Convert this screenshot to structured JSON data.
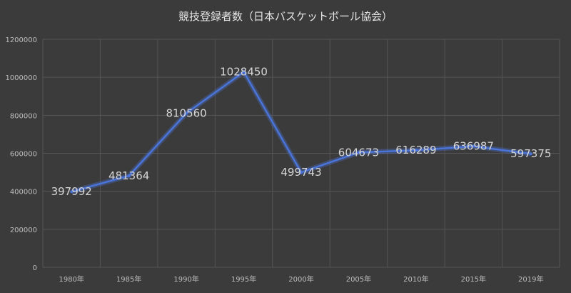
{
  "chart_data": {
    "type": "line",
    "title": "競技登録者数（日本バスケットボール協会）",
    "xlabel": "",
    "ylabel": "",
    "categories": [
      "1980年",
      "1985年",
      "1990年",
      "1995年",
      "2000年",
      "2005年",
      "2010年",
      "2015年",
      "2019年"
    ],
    "series": [
      {
        "values": [
          397992,
          481364,
          810560,
          1028450,
          499743,
          604673,
          616289,
          636987,
          597375
        ],
        "labels": [
          "397992",
          "481364",
          "810560",
          "1028450",
          "499743",
          "604673",
          "616289",
          "636987",
          "597375"
        ],
        "color": "#4a74d8"
      }
    ],
    "ylim": [
      0,
      1200000
    ],
    "yticks": [
      0,
      200000,
      400000,
      600000,
      800000,
      1000000,
      1200000
    ],
    "ytick_labels": [
      "0",
      "200000",
      "400000",
      "600000",
      "800000",
      "1000000",
      "1200000"
    ],
    "grid": true,
    "legend": "none",
    "background_color": "#3b3b3b"
  }
}
